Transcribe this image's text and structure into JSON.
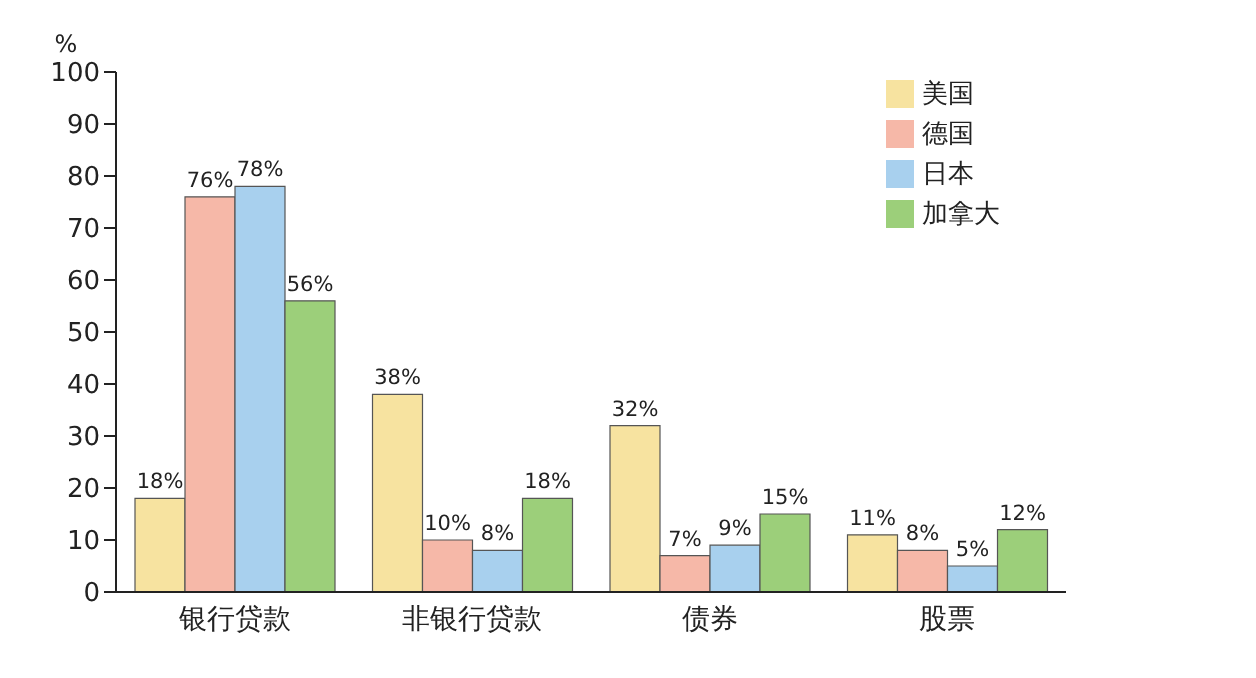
{
  "chart_data": {
    "type": "bar",
    "ylabel": "%",
    "categories": [
      "银行贷款",
      "非银行贷款",
      "债券",
      "股票"
    ],
    "series": [
      {
        "name": "美国",
        "color": "#f7e3a0",
        "values": [
          18,
          38,
          32,
          11
        ],
        "value_labels": [
          "18%",
          "38%",
          "32%",
          "11%"
        ]
      },
      {
        "name": "德国",
        "color": "#f6b8a8",
        "values": [
          76,
          10,
          7,
          8
        ],
        "value_labels": [
          "76%",
          "10%",
          "7%",
          "8%"
        ]
      },
      {
        "name": "日本",
        "color": "#a8d0ee",
        "values": [
          78,
          8,
          9,
          5
        ],
        "value_labels": [
          "78%",
          "8%",
          "9%",
          "5%"
        ]
      },
      {
        "name": "加拿大",
        "color": "#9ccf7a",
        "values": [
          56,
          18,
          15,
          12
        ],
        "value_labels": [
          "56%",
          "18%",
          "15%",
          "12%"
        ]
      }
    ],
    "ylim": [
      0,
      100
    ],
    "yticks": [
      0,
      10,
      20,
      30,
      40,
      50,
      60,
      70,
      80,
      90,
      100
    ],
    "grid": false,
    "legend": "top right"
  }
}
